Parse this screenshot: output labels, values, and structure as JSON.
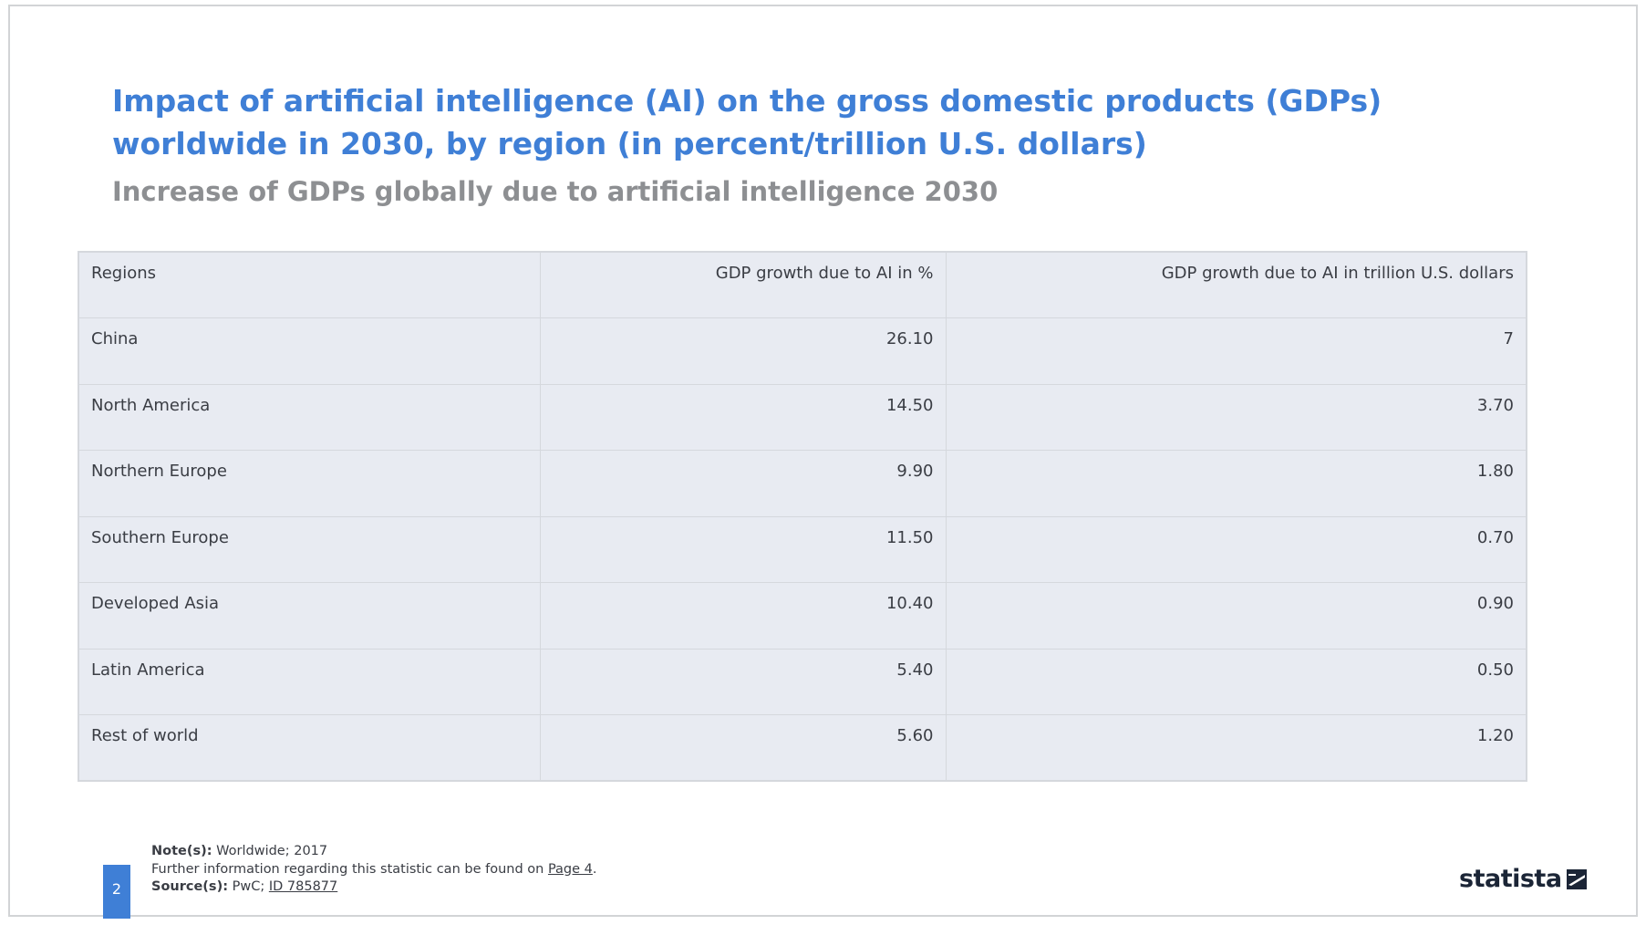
{
  "title": "Impact of artificial intelligence (AI) on the gross domestic products (GDPs) worldwide in 2030, by region (in percent/trillion U.S. dollars)",
  "subtitle": "Increase of GDPs globally due to artificial intelligence 2030",
  "chart_data": {
    "type": "table",
    "columns": [
      "Regions",
      "GDP growth due to AI in %",
      "GDP growth due to AI in trillion U.S. dollars"
    ],
    "rows": [
      [
        "China",
        "26.10",
        "7"
      ],
      [
        "North America",
        "14.50",
        "3.70"
      ],
      [
        "Northern Europe",
        "9.90",
        "1.80"
      ],
      [
        "Southern Europe",
        "11.50",
        "0.70"
      ],
      [
        "Developed Asia",
        "10.40",
        "0.90"
      ],
      [
        "Latin America",
        "5.40",
        "0.50"
      ],
      [
        "Rest of world",
        "5.60",
        "1.20"
      ]
    ]
  },
  "footer": {
    "page_number": "2",
    "note_label": "Note(s):",
    "note_text": "Worldwide; 2017",
    "further_text": "Further information regarding this statistic can be found on",
    "further_link": "Page 4",
    "further_end": ".",
    "source_label": "Source(s):",
    "source_text": "PwC;",
    "source_link": "ID 785877",
    "brand": "statista"
  },
  "colors": {
    "title": "#3f7fd6",
    "subtitle": "#8d8f92",
    "table_bg": "#e8ebf2",
    "accent": "#3f7fd6"
  },
  "icons": [
    "statista-logo-icon"
  ]
}
